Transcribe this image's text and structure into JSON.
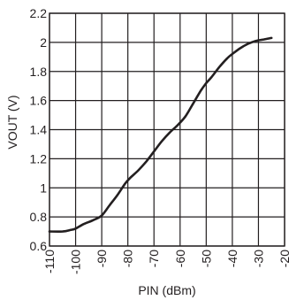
{
  "chart_data": {
    "type": "line",
    "title": "",
    "xlabel": "PIN (dBm)",
    "ylabel": "VOUT (V)",
    "xlim": [
      -110,
      -20
    ],
    "ylim": [
      0.6,
      2.2
    ],
    "x_ticks": [
      -110,
      -100,
      -90,
      -80,
      -70,
      -60,
      -50,
      -40,
      -30,
      -20
    ],
    "x_tick_labels": [
      "-110",
      "-100",
      "-90",
      "-80",
      "-70",
      "-60",
      "-50",
      "-40",
      "-30",
      "-20"
    ],
    "y_ticks": [
      0.6,
      0.8,
      1,
      1.2,
      1.4,
      1.6,
      1.8,
      2,
      2.2
    ],
    "y_tick_labels": [
      "0.6",
      "0.8",
      "1",
      "1.2",
      "1.4",
      "1.6",
      "1.8",
      "2",
      "2.2"
    ],
    "grid": true,
    "series": [
      {
        "x": [
          -110,
          -105,
          -102,
          -100,
          -97,
          -93,
          -90,
          -87,
          -84,
          -81,
          -79,
          -76,
          -73,
          -70,
          -67,
          -64,
          -61,
          -58,
          -55,
          -52,
          -50,
          -48,
          -45,
          -42,
          -40,
          -37,
          -34,
          -31,
          -28,
          -25
        ],
        "y": [
          0.7,
          0.7,
          0.71,
          0.72,
          0.75,
          0.78,
          0.81,
          0.88,
          0.95,
          1.03,
          1.07,
          1.12,
          1.18,
          1.25,
          1.32,
          1.38,
          1.43,
          1.49,
          1.58,
          1.67,
          1.72,
          1.76,
          1.83,
          1.89,
          1.92,
          1.96,
          1.99,
          2.01,
          2.02,
          2.03
        ]
      }
    ]
  }
}
